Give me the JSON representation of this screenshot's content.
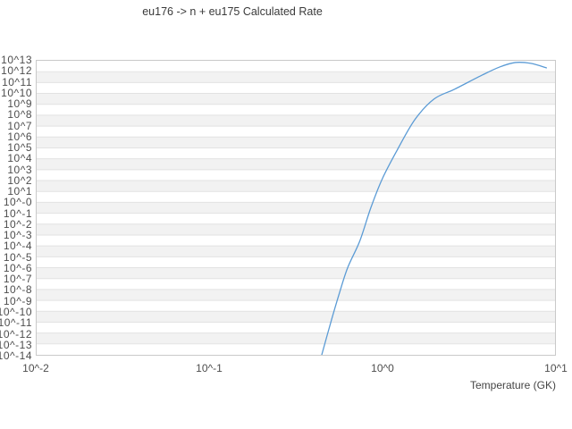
{
  "colors": {
    "curve": "#5b9bd5",
    "band_fill": "#f2f2f2",
    "gridline": "#e2e2e2",
    "plot_border": "#c9c9c9",
    "title_text": "#3a3a3a",
    "tick_text": "#4d4d4d",
    "background": "#ffffff"
  },
  "chart_data": {
    "type": "line",
    "title": "eu176 -> n + eu175 Calculated Rate",
    "xlabel": "Temperature (GK)",
    "ylabel": "",
    "x_scale": "log",
    "y_scale": "log",
    "xlim_log10": [
      -2,
      1
    ],
    "ylim_log10": [
      -14,
      13
    ],
    "x_ticks": [
      "10^-2",
      "10^-1",
      "10^0",
      "10^1"
    ],
    "y_ticks": [
      "10^13",
      "10^12",
      "10^11",
      "10^10",
      "10^9",
      "10^8",
      "10^7",
      "10^6",
      "10^5",
      "10^4",
      "10^3",
      "10^2",
      "10^1",
      "10^-0",
      "10^-1",
      "10^-2",
      "10^-3",
      "10^-4",
      "10^-5",
      "10^-6",
      "10^-7",
      "10^-8",
      "10^-9",
      "10^-10",
      "10^-11",
      "10^-12",
      "10^-13",
      "10^-14"
    ],
    "grid": "horizontal-decade-bands-alternating",
    "legend": "none",
    "series": [
      {
        "name": "calculated-rate",
        "log10_T_GK": [
          -0.35,
          -0.3,
          -0.25,
          -0.2,
          -0.13,
          -0.067,
          0.0,
          0.088,
          0.19,
          0.3,
          0.42,
          0.58,
          0.68,
          0.77,
          0.86,
          0.95
        ],
        "log10_rate": [
          -14.0,
          -11.15,
          -8.45,
          -6.0,
          -3.56,
          -0.54,
          2.15,
          4.84,
          7.62,
          9.49,
          10.4,
          11.7,
          12.43,
          12.84,
          12.76,
          12.35
        ],
        "approx_T_GK": [
          0.45,
          0.5,
          0.56,
          0.63,
          0.74,
          0.86,
          1.0,
          1.22,
          1.55,
          2.0,
          2.6,
          3.8,
          4.8,
          5.9,
          7.2,
          8.9
        ],
        "approx_rate": [
          "1e-14",
          "7e-12",
          "3.5e-9",
          "1e-6",
          "2.8e-4",
          "2.9e-1",
          "1.4e2",
          "6.9e4",
          "4.2e7",
          "3.1e9",
          "2.5e10",
          "5.0e11",
          "2.7e12",
          "6.9e12",
          "5.8e12",
          "2.2e12"
        ]
      }
    ]
  }
}
